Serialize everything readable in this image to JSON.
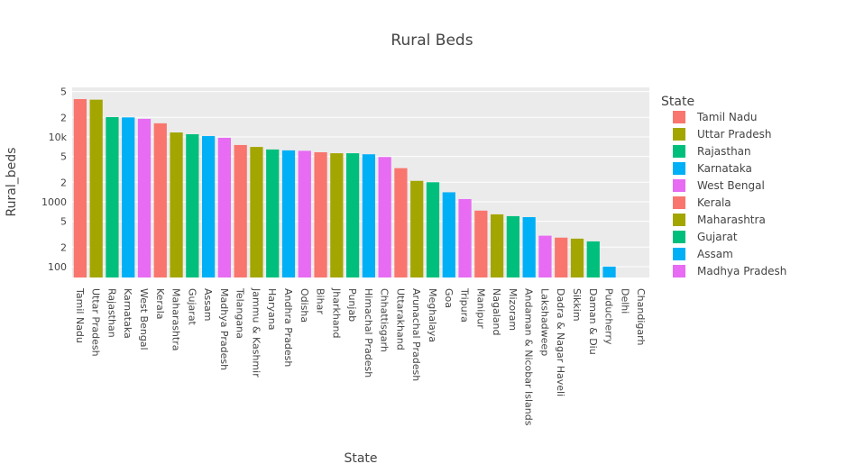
{
  "chart_data": {
    "type": "bar",
    "title": "Rural Beds",
    "xlabel": "State",
    "ylabel": "Rural_beds",
    "legend_title": "State",
    "log_y": true,
    "grid": true,
    "categories": [
      "Tamil Nadu",
      "Uttar Pradesh",
      "Rajasthan",
      "Karnataka",
      "West Bengal",
      "Kerala",
      "Maharashtra",
      "Gujarat",
      "Assam",
      "Madhya Pradesh",
      "Telangana",
      "Jammu & Kashmir",
      "Haryana",
      "Andhra Pradesh",
      "Odisha",
      "Bihar",
      "Jharkhand",
      "Punjab",
      "Himachal Pradesh",
      "Chhattisgarh",
      "Uttarakhand",
      "Arunachal Pradesh",
      "Meghalaya",
      "Goa",
      "Tripura",
      "Manipur",
      "Nagaland",
      "Mizoram",
      "Andaman & Nicobar Islands",
      "Lakshadweep",
      "Dadra & Nagar Haveli",
      "Sikkim",
      "Daman & Diu",
      "Puducherry",
      "Delhi",
      "Chandigarh"
    ],
    "values": [
      38300,
      37500,
      20200,
      20000,
      19000,
      16200,
      11700,
      11000,
      10300,
      9700,
      7500,
      7000,
      6400,
      6200,
      6100,
      5800,
      5600,
      5600,
      5400,
      4900,
      3300,
      2100,
      2000,
      1400,
      1100,
      730,
      640,
      600,
      580,
      300,
      280,
      270,
      245,
      100,
      0,
      0
    ],
    "colors": [
      "#F8766D",
      "#A3A500",
      "#00BF7D",
      "#00B0F6",
      "#E76BF3",
      "#F8766D",
      "#A3A500",
      "#00BF7D",
      "#00B0F6",
      "#E76BF3",
      "#F8766D",
      "#A3A500",
      "#00BF7D",
      "#00B0F6",
      "#E76BF3",
      "#F8766D",
      "#A3A500",
      "#00BF7D",
      "#00B0F6",
      "#E76BF3",
      "#F8766D",
      "#A3A500",
      "#00BF7D",
      "#00B0F6",
      "#E76BF3",
      "#F8766D",
      "#A3A500",
      "#00BF7D",
      "#00B0F6",
      "#E76BF3",
      "#F8766D",
      "#A3A500",
      "#00BF7D",
      "#00B0F6",
      "#E76BF3",
      "#F8766D"
    ],
    "legend_count": 10,
    "ylim": [
      68,
      58000
    ],
    "yticks": [
      100,
      {
        "value": 200,
        "label": "2"
      },
      {
        "value": 500,
        "label": "5"
      },
      1000,
      {
        "value": 2000,
        "label": "2"
      },
      {
        "value": 5000,
        "label": "5"
      },
      {
        "value": 10000,
        "label": "10k"
      },
      {
        "value": 20000,
        "label": "2"
      },
      {
        "value": 50000,
        "label": "5"
      }
    ]
  }
}
